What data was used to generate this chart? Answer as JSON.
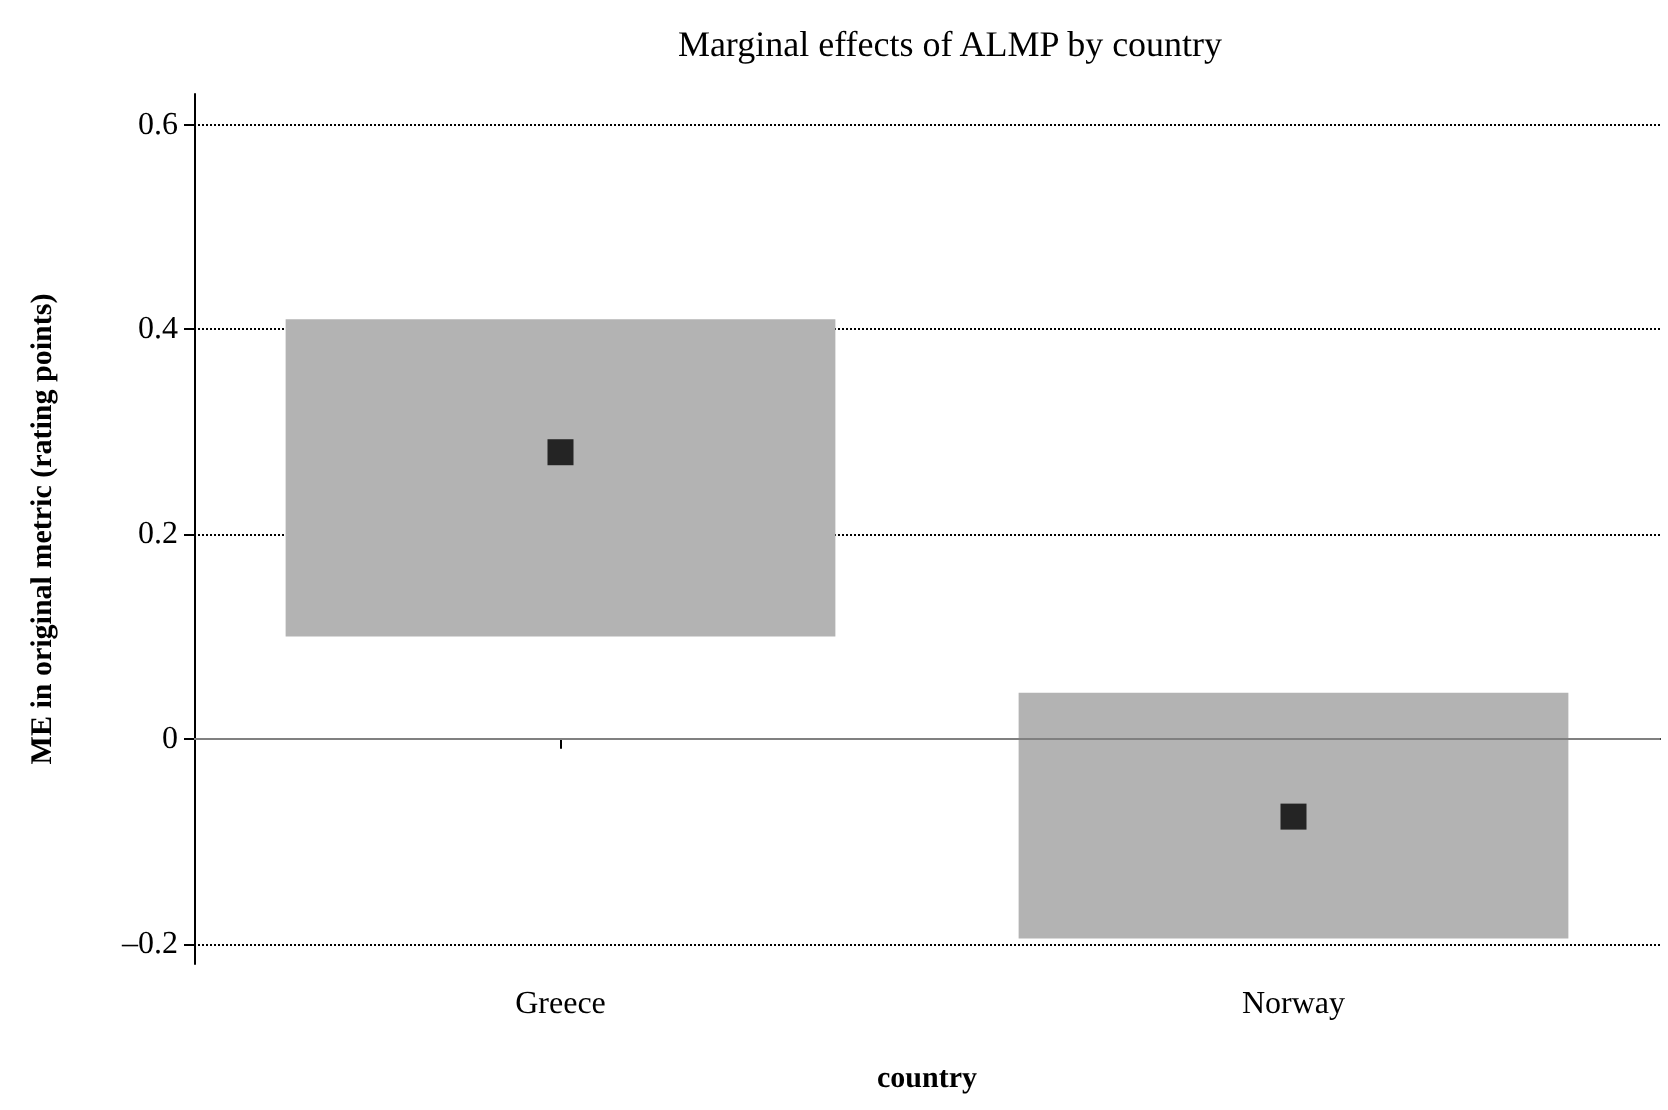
{
  "chart_data": {
    "type": "bar",
    "title": "Marginal effects of ALMP by country",
    "xlabel": "country",
    "ylabel": "ME in original metric (rating points)",
    "categories": [
      "Greece",
      "Norway"
    ],
    "series": [
      {
        "color": "#b3b3b3",
        "base": [
          0.1,
          -0.195
        ],
        "values": [
          0.31,
          0.24
        ]
      },
      {
        "type": "scatter",
        "x": [
          "Greece",
          "Norway"
        ],
        "color": "#000000",
        "marker": "square",
        "values": [
          0.28,
          -0.076
        ]
      }
    ],
    "ylim": [
      -0.22,
      0.63
    ],
    "yticks": [
      {
        "value": -0.2,
        "label": "–0.2"
      },
      0,
      0.2,
      0.4,
      0.6
    ],
    "grid": "y",
    "line_style": "dotted",
    "ref_lines": [
      {
        "axis": "y",
        "value": 0,
        "color": "#808080",
        "line_style": "solid"
      }
    ]
  }
}
